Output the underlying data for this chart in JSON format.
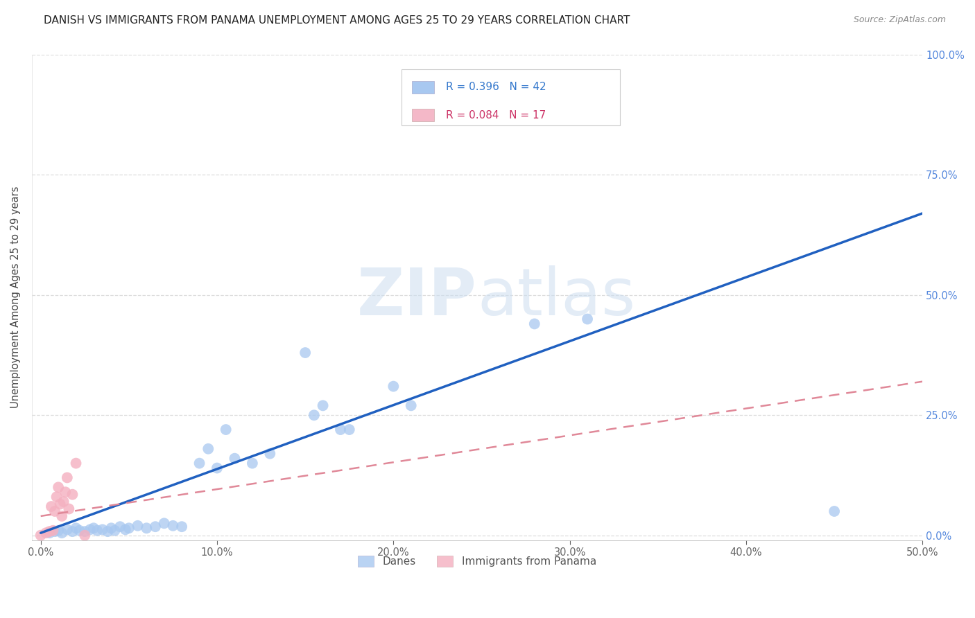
{
  "title": "DANISH VS IMMIGRANTS FROM PANAMA UNEMPLOYMENT AMONG AGES 25 TO 29 YEARS CORRELATION CHART",
  "source": "Source: ZipAtlas.com",
  "ylabel": "Unemployment Among Ages 25 to 29 years",
  "x_tick_labels": [
    "0.0%",
    "10.0%",
    "20.0%",
    "30.0%",
    "40.0%",
    "50.0%"
  ],
  "x_tick_values": [
    0.0,
    0.1,
    0.2,
    0.3,
    0.4,
    0.5
  ],
  "y_tick_labels": [
    "0.0%",
    "25.0%",
    "50.0%",
    "75.0%",
    "100.0%"
  ],
  "y_tick_values": [
    0.0,
    0.25,
    0.5,
    0.75,
    1.0
  ],
  "xlim": [
    -0.005,
    0.5
  ],
  "ylim": [
    -0.01,
    1.0
  ],
  "legend_entries": [
    "Danes",
    "Immigrants from Panama"
  ],
  "legend_R_N": [
    {
      "R": "0.396",
      "N": "42",
      "color": "#a8c8f0"
    },
    {
      "R": "0.084",
      "N": "17",
      "color": "#f4b8c8"
    }
  ],
  "danes_scatter_x": [
    0.005,
    0.008,
    0.01,
    0.012,
    0.015,
    0.018,
    0.02,
    0.022,
    0.025,
    0.028,
    0.03,
    0.032,
    0.035,
    0.038,
    0.04,
    0.042,
    0.045,
    0.048,
    0.05,
    0.055,
    0.06,
    0.065,
    0.07,
    0.075,
    0.08,
    0.09,
    0.095,
    0.1,
    0.105,
    0.11,
    0.12,
    0.13,
    0.15,
    0.155,
    0.16,
    0.17,
    0.175,
    0.2,
    0.21,
    0.28,
    0.31,
    0.45
  ],
  "danes_scatter_y": [
    0.005,
    0.008,
    0.01,
    0.005,
    0.012,
    0.008,
    0.015,
    0.01,
    0.008,
    0.012,
    0.015,
    0.01,
    0.012,
    0.008,
    0.015,
    0.01,
    0.018,
    0.012,
    0.015,
    0.02,
    0.015,
    0.018,
    0.025,
    0.02,
    0.018,
    0.15,
    0.18,
    0.14,
    0.22,
    0.16,
    0.15,
    0.17,
    0.38,
    0.25,
    0.27,
    0.22,
    0.22,
    0.31,
    0.27,
    0.44,
    0.45,
    0.05
  ],
  "panama_scatter_x": [
    0.0,
    0.003,
    0.005,
    0.006,
    0.007,
    0.008,
    0.009,
    0.01,
    0.011,
    0.012,
    0.013,
    0.014,
    0.015,
    0.016,
    0.018,
    0.02,
    0.025
  ],
  "panama_scatter_y": [
    0.0,
    0.005,
    0.008,
    0.06,
    0.01,
    0.05,
    0.08,
    0.1,
    0.065,
    0.04,
    0.07,
    0.09,
    0.12,
    0.055,
    0.085,
    0.15,
    0.0
  ],
  "danes_line_x": [
    0.0,
    0.5
  ],
  "danes_line_y": [
    0.005,
    0.67
  ],
  "panama_line_x": [
    0.0,
    0.5
  ],
  "panama_line_y": [
    0.04,
    0.32
  ],
  "danes_color": "#a8c8f0",
  "panama_color": "#f4b0c0",
  "danes_line_color": "#2060c0",
  "panama_line_color": "#e08898",
  "watermark_zip": "ZIP",
  "watermark_atlas": "atlas",
  "background_color": "#ffffff",
  "grid_color": "#cccccc"
}
